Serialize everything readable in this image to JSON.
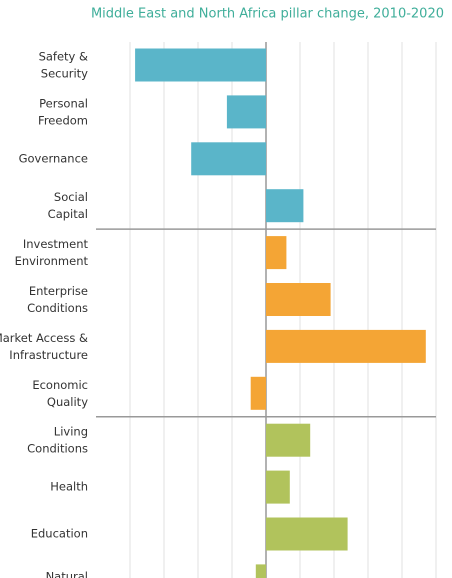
{
  "chart_data": {
    "type": "bar",
    "orientation": "horizontal",
    "title": "Middle East and North Africa pillar change, 2010-2020",
    "categories": [
      "Safety &\nSecurity",
      "Personal\nFreedom",
      "Governance",
      "Social\nCapital",
      "Investment\nEnvironment",
      "Enterprise\nConditions",
      "Market Access &\nInfrastructure",
      "Economic\nQuality",
      "Living\nConditions",
      "Health",
      "Education",
      "Natural"
    ],
    "values": [
      -3.85,
      -1.15,
      -2.2,
      1.1,
      0.6,
      1.9,
      4.7,
      -0.45,
      1.3,
      0.7,
      2.4,
      -0.3
    ],
    "colors": [
      "#5ab5c9",
      "#5ab5c9",
      "#5ab5c9",
      "#5ab5c9",
      "#f4a535",
      "#f4a535",
      "#f4a535",
      "#f4a535",
      "#b1c35c",
      "#b1c35c",
      "#b1c35c",
      "#b1c35c"
    ],
    "xlim": [
      -5,
      5
    ],
    "xticks": [
      -4,
      -3,
      -2,
      -1,
      0,
      1,
      2,
      3,
      4,
      5
    ],
    "grid": true
  }
}
